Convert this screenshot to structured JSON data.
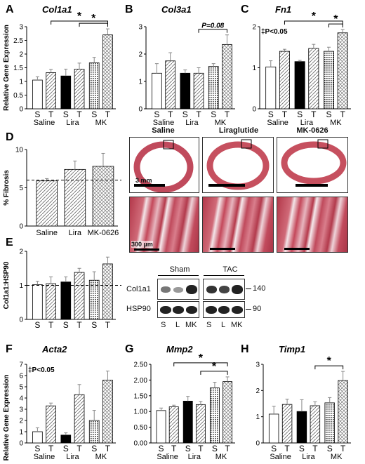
{
  "panels": [
    {
      "id": "A",
      "title": "Col1a1",
      "ylabel": "Relative Gene Expression",
      "ymax": 3,
      "yticks": [
        "0",
        "0.5",
        "1",
        "1.5",
        "2",
        "2.5",
        "3"
      ],
      "bars": [
        {
          "v": 1.05,
          "e": 0.12
        },
        {
          "v": 1.32,
          "e": 0.12
        },
        {
          "v": 1.2,
          "e": 0.25
        },
        {
          "v": 1.45,
          "e": 0.22
        },
        {
          "v": 1.68,
          "e": 0.2
        },
        {
          "v": 2.7,
          "e": 0.22
        }
      ],
      "tick_labels": [
        "S",
        "T",
        "S",
        "T",
        "S",
        "T"
      ],
      "groups": [
        "Saline",
        "Lira",
        "MK"
      ],
      "annotation": "",
      "sig": [
        {
          "from": 1,
          "to": 5,
          "label": "*"
        },
        {
          "from": 3,
          "to": 5,
          "label": "*"
        }
      ]
    },
    {
      "id": "B",
      "title": "Col3a1",
      "ylabel": "",
      "ymax": 3,
      "yticks": [
        "0",
        "1",
        "2",
        "3"
      ],
      "bars": [
        {
          "v": 1.3,
          "e": 0.35
        },
        {
          "v": 1.75,
          "e": 0.3
        },
        {
          "v": 1.3,
          "e": 0.12
        },
        {
          "v": 1.3,
          "e": 0.2
        },
        {
          "v": 1.55,
          "e": 0.1
        },
        {
          "v": 2.35,
          "e": 0.35
        }
      ],
      "tick_labels": [
        "S",
        "T",
        "S",
        "T",
        "S",
        "T"
      ],
      "groups": [
        "Saline",
        "Lira",
        "MK"
      ],
      "annotation": "",
      "sig": [
        {
          "from": 3,
          "to": 5,
          "label": "P=0.08"
        }
      ]
    },
    {
      "id": "C",
      "title": "Fn1",
      "ylabel": "",
      "ymax": 2,
      "yticks": [
        "0",
        "1",
        "2"
      ],
      "bars": [
        {
          "v": 1.02,
          "e": 0.15
        },
        {
          "v": 1.4,
          "e": 0.05
        },
        {
          "v": 1.15,
          "e": 0.03
        },
        {
          "v": 1.47,
          "e": 0.1
        },
        {
          "v": 1.4,
          "e": 0.1
        },
        {
          "v": 1.85,
          "e": 0.08
        }
      ],
      "tick_labels": [
        "S",
        "T",
        "S",
        "T",
        "S",
        "T"
      ],
      "groups": [
        "Saline",
        "Lira",
        "MK"
      ],
      "annotation": "‡P<0.05",
      "sig": [
        {
          "from": 1,
          "to": 5,
          "label": "*"
        },
        {
          "from": 4,
          "to": 5,
          "label": "*"
        }
      ]
    },
    {
      "id": "E",
      "title": "",
      "ylabel": "Col1a1:HSP90",
      "ymax": 2,
      "yticks": [
        "0",
        "1",
        "2"
      ],
      "bars": [
        {
          "v": 1.02,
          "e": 0.1
        },
        {
          "v": 1.05,
          "e": 0.2
        },
        {
          "v": 1.1,
          "e": 0.15
        },
        {
          "v": 1.38,
          "e": 0.12
        },
        {
          "v": 1.15,
          "e": 0.25
        },
        {
          "v": 1.63,
          "e": 0.2
        }
      ],
      "tick_labels": [
        "S",
        "T",
        "S",
        "T",
        "S",
        "T"
      ],
      "groups": [
        "",
        "",
        ""
      ],
      "annotation": "",
      "sig": [],
      "dashed": 1.0
    },
    {
      "id": "F",
      "title": "Acta2",
      "ylabel": "Relative Gene Expression",
      "ymax": 7,
      "yticks": [
        "0",
        "1",
        "2",
        "3",
        "4",
        "5",
        "6",
        "7"
      ],
      "bars": [
        {
          "v": 1.0,
          "e": 0.35
        },
        {
          "v": 3.3,
          "e": 0.25
        },
        {
          "v": 0.7,
          "e": 0.2
        },
        {
          "v": 4.3,
          "e": 0.9
        },
        {
          "v": 2.0,
          "e": 0.9
        },
        {
          "v": 5.6,
          "e": 0.8
        }
      ],
      "tick_labels": [
        "S",
        "T",
        "S",
        "T",
        "S",
        "T"
      ],
      "groups": [
        "Saline",
        "Lira",
        "MK"
      ],
      "annotation": "‡P<0.05",
      "sig": []
    },
    {
      "id": "G",
      "title": "Mmp2",
      "ylabel": "",
      "ymax": 2.5,
      "yticks": [
        "0.00",
        "0.50",
        "1.00",
        "1.50",
        "2.00",
        "2.50"
      ],
      "bars": [
        {
          "v": 1.03,
          "e": 0.08
        },
        {
          "v": 1.15,
          "e": 0.05
        },
        {
          "v": 1.33,
          "e": 0.15
        },
        {
          "v": 1.22,
          "e": 0.1
        },
        {
          "v": 1.75,
          "e": 0.18
        },
        {
          "v": 1.95,
          "e": 0.15
        }
      ],
      "tick_labels": [
        "S",
        "T",
        "S",
        "T",
        "S",
        "T"
      ],
      "groups": [
        "Saline",
        "Lira",
        "MK"
      ],
      "annotation": "",
      "sig": [
        {
          "from": 1,
          "to": 5,
          "label": "*"
        },
        {
          "from": 3,
          "to": 5,
          "label": "*"
        }
      ]
    },
    {
      "id": "H",
      "title": "Timp1",
      "ylabel": "",
      "ymax": 3,
      "yticks": [
        "0",
        "1",
        "2",
        "3"
      ],
      "bars": [
        {
          "v": 1.1,
          "e": 0.3
        },
        {
          "v": 1.47,
          "e": 0.2
        },
        {
          "v": 1.2,
          "e": 0.45
        },
        {
          "v": 1.42,
          "e": 0.15
        },
        {
          "v": 1.53,
          "e": 0.2
        },
        {
          "v": 2.38,
          "e": 0.35
        }
      ],
      "tick_labels": [
        "S",
        "T",
        "S",
        "T",
        "S",
        "T"
      ],
      "groups": [
        "Saline",
        "Lira",
        "MK"
      ],
      "annotation": "",
      "sig": [
        {
          "from": 3,
          "to": 5,
          "label": "*"
        }
      ]
    }
  ],
  "panelD": {
    "id": "D",
    "ylabel": "% Fibrosis",
    "ymax": 10,
    "yticks": [
      "0",
      "5",
      "10"
    ],
    "bars": [
      {
        "v": 5.9,
        "e": 0.3
      },
      {
        "v": 7.4,
        "e": 1.1
      },
      {
        "v": 7.8,
        "e": 1.7
      }
    ],
    "categories": [
      "Saline",
      "Lira",
      "MK-0626"
    ],
    "dashed": 6.0
  },
  "micrographs": {
    "titles": [
      "Saline",
      "Liraglutide",
      "MK-0626"
    ],
    "scale_top": "3 mm",
    "scale_bottom": "300 µm"
  },
  "western": {
    "groups": [
      "Sham",
      "TAC"
    ],
    "rows": [
      "Col1a1",
      "HSP90"
    ],
    "mw": [
      "140",
      "90"
    ],
    "lanes": [
      "S",
      "L",
      "MK"
    ]
  },
  "chart_data": [
    {
      "type": "bar",
      "panel": "A",
      "title": "Col1a1",
      "ylabel": "Relative Gene Expression",
      "categories": [
        "Saline S",
        "Saline T",
        "Lira S",
        "Lira T",
        "MK S",
        "MK T"
      ],
      "values": [
        1.05,
        1.32,
        1.2,
        1.45,
        1.68,
        2.7
      ],
      "ylim": [
        0,
        3
      ]
    },
    {
      "type": "bar",
      "panel": "B",
      "title": "Col3a1",
      "categories": [
        "Saline S",
        "Saline T",
        "Lira S",
        "Lira T",
        "MK S",
        "MK T"
      ],
      "values": [
        1.3,
        1.75,
        1.3,
        1.3,
        1.55,
        2.35
      ],
      "ylim": [
        0,
        3
      ]
    },
    {
      "type": "bar",
      "panel": "C",
      "title": "Fn1",
      "categories": [
        "Saline S",
        "Saline T",
        "Lira S",
        "Lira T",
        "MK S",
        "MK T"
      ],
      "values": [
        1.02,
        1.4,
        1.15,
        1.47,
        1.4,
        1.85
      ],
      "ylim": [
        0,
        2
      ]
    },
    {
      "type": "bar",
      "panel": "D",
      "ylabel": "% Fibrosis",
      "categories": [
        "Saline",
        "Lira",
        "MK-0626"
      ],
      "values": [
        5.9,
        7.4,
        7.8
      ],
      "ylim": [
        0,
        10
      ]
    },
    {
      "type": "bar",
      "panel": "E",
      "ylabel": "Col1a1:HSP90",
      "categories": [
        "S",
        "T",
        "S",
        "T",
        "S",
        "T"
      ],
      "values": [
        1.02,
        1.05,
        1.1,
        1.38,
        1.15,
        1.63
      ],
      "ylim": [
        0,
        2
      ]
    },
    {
      "type": "bar",
      "panel": "F",
      "title": "Acta2",
      "ylabel": "Relative Gene Expression",
      "categories": [
        "Saline S",
        "Saline T",
        "Lira S",
        "Lira T",
        "MK S",
        "MK T"
      ],
      "values": [
        1.0,
        3.3,
        0.7,
        4.3,
        2.0,
        5.6
      ],
      "ylim": [
        0,
        7
      ]
    },
    {
      "type": "bar",
      "panel": "G",
      "title": "Mmp2",
      "categories": [
        "Saline S",
        "Saline T",
        "Lira S",
        "Lira T",
        "MK S",
        "MK T"
      ],
      "values": [
        1.03,
        1.15,
        1.33,
        1.22,
        1.75,
        1.95
      ],
      "ylim": [
        0,
        2.5
      ]
    },
    {
      "type": "bar",
      "panel": "H",
      "title": "Timp1",
      "categories": [
        "Saline S",
        "Saline T",
        "Lira S",
        "Lira T",
        "MK S",
        "MK T"
      ],
      "values": [
        1.1,
        1.47,
        1.2,
        1.42,
        1.53,
        2.38
      ],
      "ylim": [
        0,
        3
      ]
    }
  ]
}
